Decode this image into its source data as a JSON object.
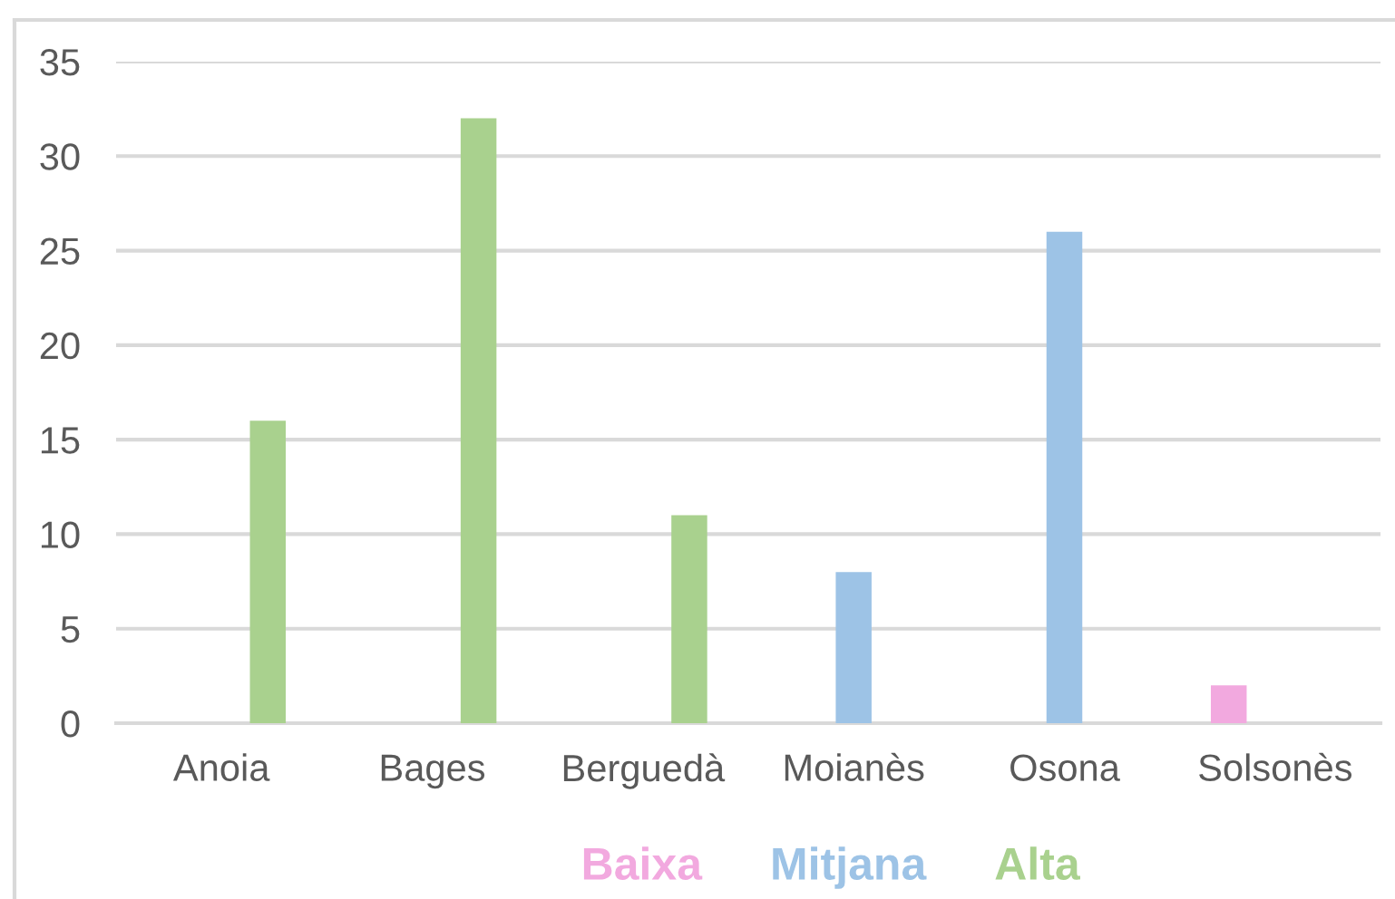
{
  "chart_data": {
    "type": "bar",
    "categories": [
      "Anoia",
      "Bages",
      "Berguedà",
      "Moianès",
      "Osona",
      "Solsonès"
    ],
    "series": [
      {
        "name": "Baixa",
        "color": "#f2a9df",
        "values": [
          null,
          null,
          null,
          null,
          null,
          2
        ]
      },
      {
        "name": "Mitjana",
        "color": "#9dc3e6",
        "values": [
          null,
          null,
          null,
          8,
          26,
          null
        ]
      },
      {
        "name": "Alta",
        "color": "#a9d18e",
        "values": [
          16,
          32,
          11,
          null,
          null,
          null
        ]
      }
    ],
    "ylim": [
      0,
      35
    ],
    "yticks": [
      0,
      5,
      10,
      15,
      20,
      25,
      30,
      35
    ],
    "grid": "y",
    "legend": "bottom"
  }
}
